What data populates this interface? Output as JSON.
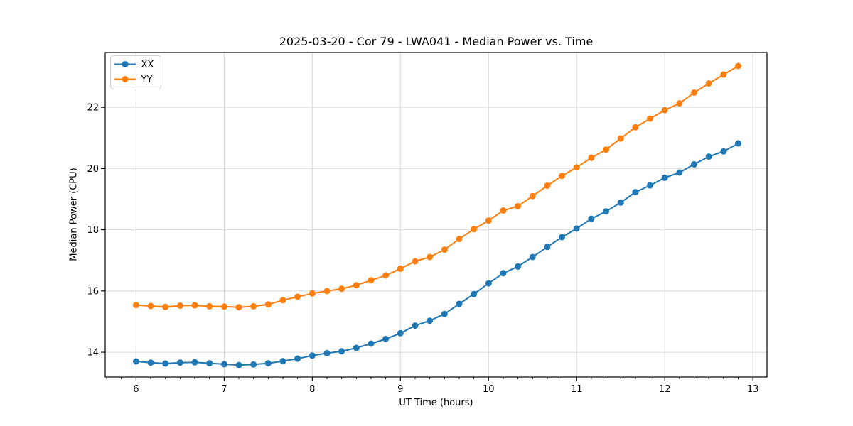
{
  "figure": {
    "background": "#ffffff",
    "text_color": "#000000",
    "grid_color": "#d9d9d9",
    "spine_color": "#000000"
  },
  "chart_data": {
    "type": "line",
    "title": "2025-03-20 - Cor 79 - LWA041 - Median Power vs. Time",
    "xlabel": "UT Time (hours)",
    "ylabel": "Median Power (CPU)",
    "xlim": [
      5.65,
      13.16
    ],
    "ylim": [
      13.19,
      23.79
    ],
    "x_major_ticks": [
      6,
      7,
      8,
      9,
      10,
      11,
      12,
      13
    ],
    "y_major_ticks": [
      14,
      16,
      18,
      20,
      22
    ],
    "x_minor_step_hours": 0.1667,
    "grid": true,
    "legend_position": "upper-left",
    "marker": "circle",
    "x": [
      6.0,
      6.167,
      6.333,
      6.5,
      6.667,
      6.833,
      7.0,
      7.167,
      7.333,
      7.5,
      7.667,
      7.833,
      8.0,
      8.167,
      8.333,
      8.5,
      8.667,
      8.833,
      9.0,
      9.167,
      9.333,
      9.5,
      9.667,
      9.833,
      10.0,
      10.167,
      10.333,
      10.5,
      10.667,
      10.833,
      11.0,
      11.167,
      11.333,
      11.5,
      11.667,
      11.833,
      12.0,
      12.167,
      12.333,
      12.5,
      12.667,
      12.833
    ],
    "series": [
      {
        "name": "XX",
        "color": "#1f77b4",
        "values": [
          13.7,
          13.66,
          13.63,
          13.66,
          13.67,
          13.64,
          13.61,
          13.58,
          13.6,
          13.64,
          13.71,
          13.79,
          13.89,
          13.97,
          14.03,
          14.14,
          14.28,
          14.43,
          14.62,
          14.87,
          15.03,
          15.25,
          15.58,
          15.9,
          16.25,
          16.58,
          16.8,
          17.11,
          17.44,
          17.76,
          18.04,
          18.36,
          18.6,
          18.89,
          19.23,
          19.45,
          19.7,
          19.87,
          20.14,
          20.39,
          20.56,
          20.82
        ]
      },
      {
        "name": "YY",
        "color": "#ff7f0e",
        "values": [
          15.54,
          15.51,
          15.48,
          15.52,
          15.53,
          15.5,
          15.49,
          15.47,
          15.5,
          15.56,
          15.7,
          15.81,
          15.92,
          16.0,
          16.07,
          16.19,
          16.35,
          16.51,
          16.73,
          16.97,
          17.11,
          17.35,
          17.7,
          18.02,
          18.3,
          18.63,
          18.77,
          19.1,
          19.44,
          19.76,
          20.04,
          20.35,
          20.62,
          20.98,
          21.35,
          21.63,
          21.91,
          22.13,
          22.48,
          22.78,
          23.07,
          23.35
        ]
      }
    ]
  }
}
